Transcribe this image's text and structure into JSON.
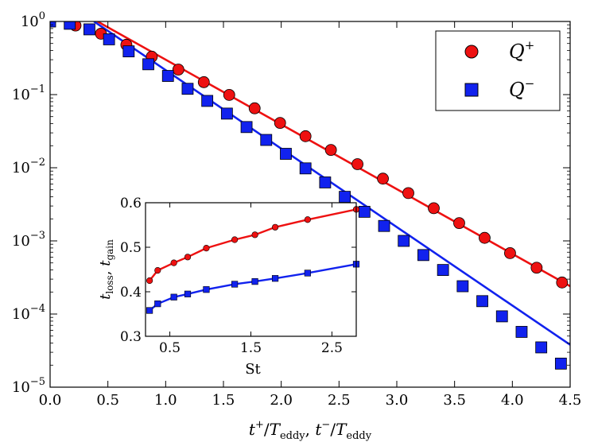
{
  "chart_data": {
    "type": "scatter",
    "main": {
      "xlabel": "t+/Teddy, t−/Teddy",
      "xlabel_parts": {
        "t1": "t",
        "sup1": "+",
        "slash": "/",
        "T1": "T",
        "sub1": "eddy",
        "sep": ", ",
        "t2": "t",
        "sup2": "−",
        "T2": "T",
        "sub2": "eddy"
      },
      "ylabel": "",
      "xlim": [
        0.0,
        4.5
      ],
      "ylim_exp": [
        -5,
        0
      ],
      "yscale": "log",
      "xticks": [
        0.0,
        0.5,
        1.0,
        1.5,
        2.0,
        2.5,
        3.0,
        3.5,
        4.0,
        4.5
      ],
      "xtick_labels": [
        "0.0",
        "0.5",
        "1.0",
        "1.5",
        "2.0",
        "2.5",
        "3.0",
        "3.5",
        "4.0",
        "4.5"
      ],
      "ytick_exponents": [
        0,
        -1,
        -2,
        -3,
        -4,
        -5
      ],
      "ytick_labels": [
        {
          "base": "10",
          "exp": "0"
        },
        {
          "base": "10",
          "exp": "−1"
        },
        {
          "base": "10",
          "exp": "−2"
        },
        {
          "base": "10",
          "exp": "−3"
        },
        {
          "base": "10",
          "exp": "−4"
        },
        {
          "base": "10",
          "exp": "−5"
        }
      ],
      "series": [
        {
          "name": "Q+",
          "label_base": "Q",
          "label_sup": "+",
          "color": "#ee1111",
          "marker": "circle",
          "x": [
            0.0,
            0.22,
            0.44,
            0.66,
            0.88,
            1.11,
            1.33,
            1.55,
            1.77,
            1.99,
            2.21,
            2.43,
            2.66,
            2.88,
            3.1,
            3.32,
            3.54,
            3.76,
            3.98,
            4.21,
            4.43
          ],
          "y": [
            1.0,
            0.88,
            0.68,
            0.48,
            0.33,
            0.22,
            0.148,
            0.099,
            0.065,
            0.041,
            0.027,
            0.0175,
            0.0112,
            0.0071,
            0.0045,
            0.0028,
            0.00175,
            0.0011,
            0.00068,
            0.00043,
            0.00027
          ],
          "fit": {
            "x": [
              0.41,
              4.5
            ],
            "y": [
              1.0,
              0.00024
            ]
          }
        },
        {
          "name": "Q−",
          "label_base": "Q",
          "label_sup": "−",
          "color": "#1122ee",
          "marker": "square",
          "x": [
            0.0,
            0.17,
            0.34,
            0.51,
            0.68,
            0.85,
            1.02,
            1.19,
            1.36,
            1.53,
            1.7,
            1.87,
            2.04,
            2.21,
            2.38,
            2.55,
            2.72,
            2.89,
            3.06,
            3.23,
            3.4,
            3.57,
            3.74,
            3.91,
            4.08,
            4.25,
            4.42
          ],
          "y": [
            1.0,
            0.93,
            0.78,
            0.57,
            0.39,
            0.26,
            0.18,
            0.12,
            0.082,
            0.055,
            0.036,
            0.024,
            0.0155,
            0.0098,
            0.0063,
            0.004,
            0.0025,
            0.0016,
            0.001,
            0.00064,
            0.0004,
            0.00024,
            0.00015,
            9.3e-05,
            5.7e-05,
            3.5e-05,
            2.1e-05
          ],
          "fit": {
            "x": [
              0.38,
              4.5
            ],
            "y": [
              1.0,
              3.8e-05
            ]
          }
        }
      ],
      "legend": {
        "position": "top-right"
      }
    },
    "inset": {
      "xlabel": "St",
      "ylabel": "tloss, tgain",
      "ylabel_parts": {
        "t1": "t",
        "sub1": "loss",
        "sep": ", ",
        "t2": "t",
        "sub2": "gain"
      },
      "xlim": [
        0.2,
        2.8
      ],
      "ylim": [
        0.3,
        0.6
      ],
      "xticks": [
        0.5,
        1.5,
        2.5
      ],
      "xtick_labels": [
        "0.5",
        "1.5",
        "2.5"
      ],
      "yticks": [
        0.3,
        0.4,
        0.5,
        0.6
      ],
      "ytick_labels": [
        "0.3",
        "0.4",
        "0.5",
        "0.6"
      ],
      "series": [
        {
          "name": "tloss",
          "color": "#ee1111",
          "marker": "circle",
          "x": [
            0.25,
            0.35,
            0.55,
            0.72,
            0.95,
            1.3,
            1.55,
            1.8,
            2.2,
            2.8
          ],
          "y": [
            0.425,
            0.448,
            0.465,
            0.478,
            0.498,
            0.517,
            0.528,
            0.545,
            0.562,
            0.585
          ]
        },
        {
          "name": "tgain",
          "color": "#1122ee",
          "marker": "square",
          "x": [
            0.25,
            0.35,
            0.55,
            0.72,
            0.95,
            1.3,
            1.55,
            1.8,
            2.2,
            2.8
          ],
          "y": [
            0.358,
            0.373,
            0.388,
            0.395,
            0.405,
            0.417,
            0.423,
            0.43,
            0.442,
            0.462
          ]
        }
      ]
    }
  }
}
